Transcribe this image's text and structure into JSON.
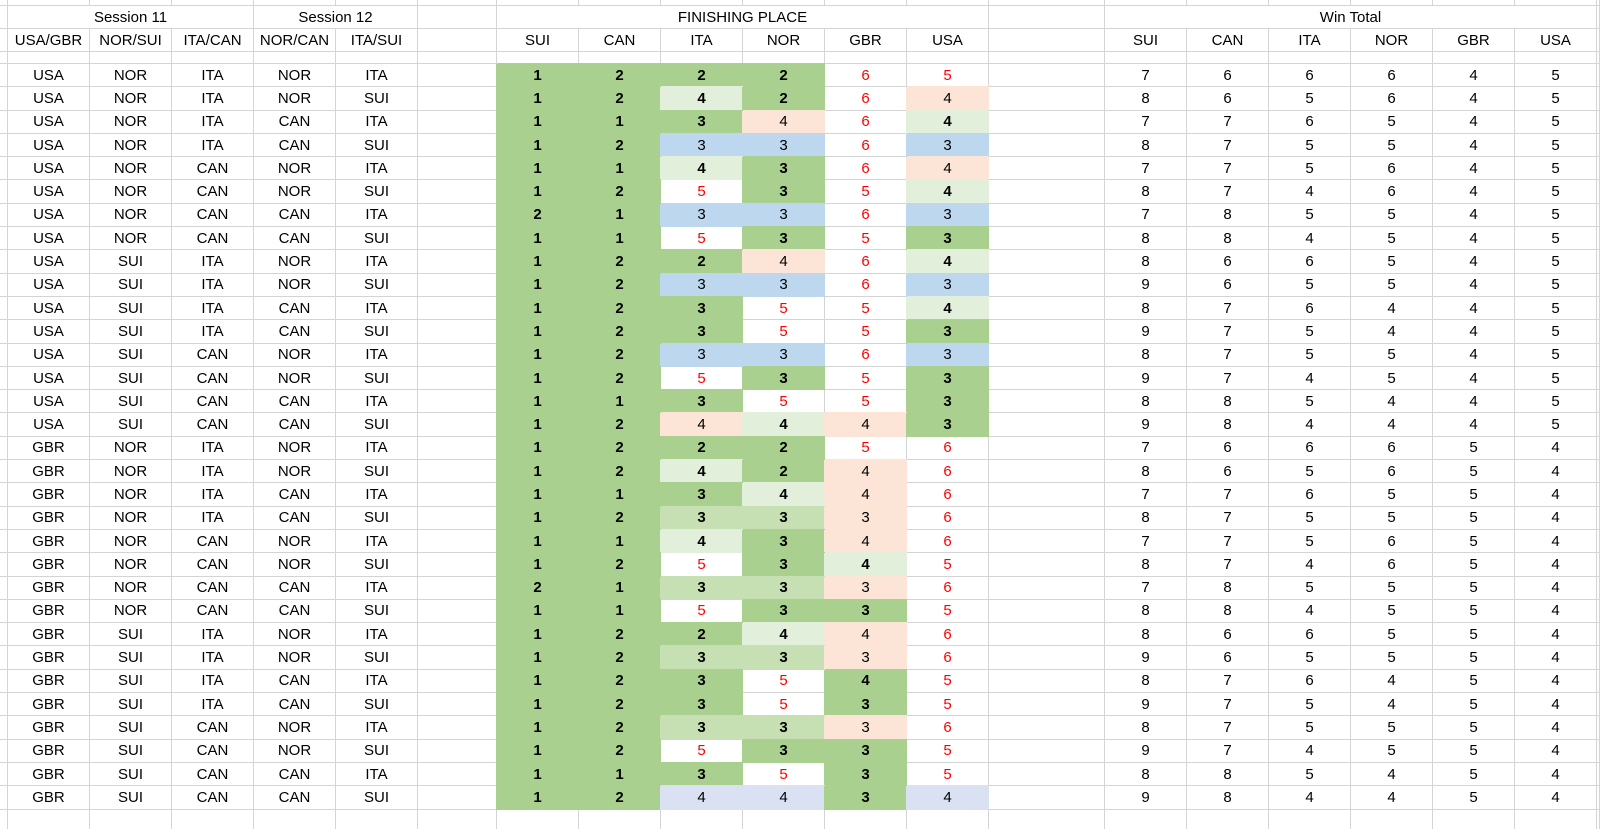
{
  "headers": {
    "session11": "Session 11",
    "session12": "Session 12",
    "finishing_place": "FINISHING PLACE",
    "win_total": "Win Total",
    "matchups": [
      "USA/GBR",
      "NOR/SUI",
      "ITA/CAN",
      "NOR/CAN",
      "ITA/SUI"
    ],
    "teams": [
      "SUI",
      "CAN",
      "ITA",
      "NOR",
      "GBR",
      "USA"
    ]
  },
  "colors": {
    "fill_win_strong_green": "#a9d08e",
    "fill_mid_green": "#c6e0b4",
    "fill_light_green": "#e2efda",
    "fill_pink": "#fce4d6",
    "fill_blue": "#bdd7ee",
    "fill_lavender": "#d9e1f2",
    "gridline": "#d4d4d4",
    "eliminated_text_red": "#ff0000"
  },
  "fill_legend": {
    "G": "strong-green",
    "M": "mid-green",
    "L": "light-green",
    "P": "pink",
    "B": "blue",
    "V": "lavender",
    "W": "white-red-text"
  },
  "rows": [
    {
      "s": [
        "USA",
        "NOR",
        "ITA",
        "NOR",
        "ITA"
      ],
      "f": [
        [
          "1",
          "G"
        ],
        [
          "2",
          "G"
        ],
        [
          "2",
          "G"
        ],
        [
          "2",
          "G"
        ],
        [
          "6",
          "W"
        ],
        [
          "5",
          "W"
        ]
      ],
      "w": [
        7,
        6,
        6,
        6,
        4,
        5
      ]
    },
    {
      "s": [
        "USA",
        "NOR",
        "ITA",
        "NOR",
        "SUI"
      ],
      "f": [
        [
          "1",
          "G"
        ],
        [
          "2",
          "G"
        ],
        [
          "4",
          "L"
        ],
        [
          "2",
          "G"
        ],
        [
          "6",
          "W"
        ],
        [
          "4",
          "P"
        ]
      ],
      "w": [
        8,
        6,
        5,
        6,
        4,
        5
      ]
    },
    {
      "s": [
        "USA",
        "NOR",
        "ITA",
        "CAN",
        "ITA"
      ],
      "f": [
        [
          "1",
          "G"
        ],
        [
          "1",
          "G"
        ],
        [
          "3",
          "G"
        ],
        [
          "4",
          "P"
        ],
        [
          "6",
          "W"
        ],
        [
          "4",
          "L"
        ]
      ],
      "w": [
        7,
        7,
        6,
        5,
        4,
        5
      ]
    },
    {
      "s": [
        "USA",
        "NOR",
        "ITA",
        "CAN",
        "SUI"
      ],
      "f": [
        [
          "1",
          "G"
        ],
        [
          "2",
          "G"
        ],
        [
          "3",
          "B"
        ],
        [
          "3",
          "B"
        ],
        [
          "6",
          "W"
        ],
        [
          "3",
          "B"
        ]
      ],
      "w": [
        8,
        7,
        5,
        5,
        4,
        5
      ]
    },
    {
      "s": [
        "USA",
        "NOR",
        "CAN",
        "NOR",
        "ITA"
      ],
      "f": [
        [
          "1",
          "G"
        ],
        [
          "1",
          "G"
        ],
        [
          "4",
          "L"
        ],
        [
          "3",
          "G"
        ],
        [
          "6",
          "W"
        ],
        [
          "4",
          "P"
        ]
      ],
      "w": [
        7,
        7,
        5,
        6,
        4,
        5
      ]
    },
    {
      "s": [
        "USA",
        "NOR",
        "CAN",
        "NOR",
        "SUI"
      ],
      "f": [
        [
          "1",
          "G"
        ],
        [
          "2",
          "G"
        ],
        [
          "5",
          "W"
        ],
        [
          "3",
          "G"
        ],
        [
          "5",
          "W"
        ],
        [
          "4",
          "L"
        ]
      ],
      "w": [
        8,
        7,
        4,
        6,
        4,
        5
      ]
    },
    {
      "s": [
        "USA",
        "NOR",
        "CAN",
        "CAN",
        "ITA"
      ],
      "f": [
        [
          "2",
          "G"
        ],
        [
          "1",
          "G"
        ],
        [
          "3",
          "B"
        ],
        [
          "3",
          "B"
        ],
        [
          "6",
          "W"
        ],
        [
          "3",
          "B"
        ]
      ],
      "w": [
        7,
        8,
        5,
        5,
        4,
        5
      ]
    },
    {
      "s": [
        "USA",
        "NOR",
        "CAN",
        "CAN",
        "SUI"
      ],
      "f": [
        [
          "1",
          "G"
        ],
        [
          "1",
          "G"
        ],
        [
          "5",
          "W"
        ],
        [
          "3",
          "G"
        ],
        [
          "5",
          "W"
        ],
        [
          "3",
          "G"
        ]
      ],
      "w": [
        8,
        8,
        4,
        5,
        4,
        5
      ]
    },
    {
      "s": [
        "USA",
        "SUI",
        "ITA",
        "NOR",
        "ITA"
      ],
      "f": [
        [
          "1",
          "G"
        ],
        [
          "2",
          "G"
        ],
        [
          "2",
          "G"
        ],
        [
          "4",
          "P"
        ],
        [
          "6",
          "W"
        ],
        [
          "4",
          "L"
        ]
      ],
      "w": [
        8,
        6,
        6,
        5,
        4,
        5
      ]
    },
    {
      "s": [
        "USA",
        "SUI",
        "ITA",
        "NOR",
        "SUI"
      ],
      "f": [
        [
          "1",
          "G"
        ],
        [
          "2",
          "G"
        ],
        [
          "3",
          "B"
        ],
        [
          "3",
          "B"
        ],
        [
          "6",
          "W"
        ],
        [
          "3",
          "B"
        ]
      ],
      "w": [
        9,
        6,
        5,
        5,
        4,
        5
      ]
    },
    {
      "s": [
        "USA",
        "SUI",
        "ITA",
        "CAN",
        "ITA"
      ],
      "f": [
        [
          "1",
          "G"
        ],
        [
          "2",
          "G"
        ],
        [
          "3",
          "G"
        ],
        [
          "5",
          "W"
        ],
        [
          "5",
          "W"
        ],
        [
          "4",
          "L"
        ]
      ],
      "w": [
        8,
        7,
        6,
        4,
        4,
        5
      ]
    },
    {
      "s": [
        "USA",
        "SUI",
        "ITA",
        "CAN",
        "SUI"
      ],
      "f": [
        [
          "1",
          "G"
        ],
        [
          "2",
          "G"
        ],
        [
          "3",
          "G"
        ],
        [
          "5",
          "W"
        ],
        [
          "5",
          "W"
        ],
        [
          "3",
          "G"
        ]
      ],
      "w": [
        9,
        7,
        5,
        4,
        4,
        5
      ]
    },
    {
      "s": [
        "USA",
        "SUI",
        "CAN",
        "NOR",
        "ITA"
      ],
      "f": [
        [
          "1",
          "G"
        ],
        [
          "2",
          "G"
        ],
        [
          "3",
          "B"
        ],
        [
          "3",
          "B"
        ],
        [
          "6",
          "W"
        ],
        [
          "3",
          "B"
        ]
      ],
      "w": [
        8,
        7,
        5,
        5,
        4,
        5
      ]
    },
    {
      "s": [
        "USA",
        "SUI",
        "CAN",
        "NOR",
        "SUI"
      ],
      "f": [
        [
          "1",
          "G"
        ],
        [
          "2",
          "G"
        ],
        [
          "5",
          "W"
        ],
        [
          "3",
          "G"
        ],
        [
          "5",
          "W"
        ],
        [
          "3",
          "G"
        ]
      ],
      "w": [
        9,
        7,
        4,
        5,
        4,
        5
      ]
    },
    {
      "s": [
        "USA",
        "SUI",
        "CAN",
        "CAN",
        "ITA"
      ],
      "f": [
        [
          "1",
          "G"
        ],
        [
          "1",
          "G"
        ],
        [
          "3",
          "G"
        ],
        [
          "5",
          "W"
        ],
        [
          "5",
          "W"
        ],
        [
          "3",
          "G"
        ]
      ],
      "w": [
        8,
        8,
        5,
        4,
        4,
        5
      ]
    },
    {
      "s": [
        "USA",
        "SUI",
        "CAN",
        "CAN",
        "SUI"
      ],
      "f": [
        [
          "1",
          "G"
        ],
        [
          "2",
          "G"
        ],
        [
          "4",
          "P"
        ],
        [
          "4",
          "L"
        ],
        [
          "4",
          "P"
        ],
        [
          "3",
          "G"
        ]
      ],
      "w": [
        9,
        8,
        4,
        4,
        4,
        5
      ]
    },
    {
      "s": [
        "GBR",
        "NOR",
        "ITA",
        "NOR",
        "ITA"
      ],
      "f": [
        [
          "1",
          "G"
        ],
        [
          "2",
          "G"
        ],
        [
          "2",
          "G"
        ],
        [
          "2",
          "G"
        ],
        [
          "5",
          "W"
        ],
        [
          "6",
          "W"
        ]
      ],
      "w": [
        7,
        6,
        6,
        6,
        5,
        4
      ]
    },
    {
      "s": [
        "GBR",
        "NOR",
        "ITA",
        "NOR",
        "SUI"
      ],
      "f": [
        [
          "1",
          "G"
        ],
        [
          "2",
          "G"
        ],
        [
          "4",
          "L"
        ],
        [
          "2",
          "G"
        ],
        [
          "4",
          "P"
        ],
        [
          "6",
          "W"
        ]
      ],
      "w": [
        8,
        6,
        5,
        6,
        5,
        4
      ]
    },
    {
      "s": [
        "GBR",
        "NOR",
        "ITA",
        "CAN",
        "ITA"
      ],
      "f": [
        [
          "1",
          "G"
        ],
        [
          "1",
          "G"
        ],
        [
          "3",
          "G"
        ],
        [
          "4",
          "L"
        ],
        [
          "4",
          "P"
        ],
        [
          "6",
          "W"
        ]
      ],
      "w": [
        7,
        7,
        6,
        5,
        5,
        4
      ]
    },
    {
      "s": [
        "GBR",
        "NOR",
        "ITA",
        "CAN",
        "SUI"
      ],
      "f": [
        [
          "1",
          "G"
        ],
        [
          "2",
          "G"
        ],
        [
          "3",
          "M"
        ],
        [
          "3",
          "M"
        ],
        [
          "3",
          "P"
        ],
        [
          "6",
          "W"
        ]
      ],
      "w": [
        8,
        7,
        5,
        5,
        5,
        4
      ]
    },
    {
      "s": [
        "GBR",
        "NOR",
        "CAN",
        "NOR",
        "ITA"
      ],
      "f": [
        [
          "1",
          "G"
        ],
        [
          "1",
          "G"
        ],
        [
          "4",
          "L"
        ],
        [
          "3",
          "G"
        ],
        [
          "4",
          "P"
        ],
        [
          "6",
          "W"
        ]
      ],
      "w": [
        7,
        7,
        5,
        6,
        5,
        4
      ]
    },
    {
      "s": [
        "GBR",
        "NOR",
        "CAN",
        "NOR",
        "SUI"
      ],
      "f": [
        [
          "1",
          "G"
        ],
        [
          "2",
          "G"
        ],
        [
          "5",
          "W"
        ],
        [
          "3",
          "G"
        ],
        [
          "4",
          "L"
        ],
        [
          "5",
          "W"
        ]
      ],
      "w": [
        8,
        7,
        4,
        6,
        5,
        4
      ]
    },
    {
      "s": [
        "GBR",
        "NOR",
        "CAN",
        "CAN",
        "ITA"
      ],
      "f": [
        [
          "2",
          "G"
        ],
        [
          "1",
          "G"
        ],
        [
          "3",
          "M"
        ],
        [
          "3",
          "M"
        ],
        [
          "3",
          "P"
        ],
        [
          "6",
          "W"
        ]
      ],
      "w": [
        7,
        8,
        5,
        5,
        5,
        4
      ]
    },
    {
      "s": [
        "GBR",
        "NOR",
        "CAN",
        "CAN",
        "SUI"
      ],
      "f": [
        [
          "1",
          "G"
        ],
        [
          "1",
          "G"
        ],
        [
          "5",
          "W"
        ],
        [
          "3",
          "G"
        ],
        [
          "3",
          "G"
        ],
        [
          "5",
          "W"
        ]
      ],
      "w": [
        8,
        8,
        4,
        5,
        5,
        4
      ]
    },
    {
      "s": [
        "GBR",
        "SUI",
        "ITA",
        "NOR",
        "ITA"
      ],
      "f": [
        [
          "1",
          "G"
        ],
        [
          "2",
          "G"
        ],
        [
          "2",
          "G"
        ],
        [
          "4",
          "L"
        ],
        [
          "4",
          "P"
        ],
        [
          "6",
          "W"
        ]
      ],
      "w": [
        8,
        6,
        6,
        5,
        5,
        4
      ]
    },
    {
      "s": [
        "GBR",
        "SUI",
        "ITA",
        "NOR",
        "SUI"
      ],
      "f": [
        [
          "1",
          "G"
        ],
        [
          "2",
          "G"
        ],
        [
          "3",
          "M"
        ],
        [
          "3",
          "M"
        ],
        [
          "3",
          "P"
        ],
        [
          "6",
          "W"
        ]
      ],
      "w": [
        9,
        6,
        5,
        5,
        5,
        4
      ]
    },
    {
      "s": [
        "GBR",
        "SUI",
        "ITA",
        "CAN",
        "ITA"
      ],
      "f": [
        [
          "1",
          "G"
        ],
        [
          "2",
          "G"
        ],
        [
          "3",
          "G"
        ],
        [
          "5",
          "W"
        ],
        [
          "4",
          "G"
        ],
        [
          "5",
          "W"
        ]
      ],
      "w": [
        8,
        7,
        6,
        4,
        5,
        4
      ]
    },
    {
      "s": [
        "GBR",
        "SUI",
        "ITA",
        "CAN",
        "SUI"
      ],
      "f": [
        [
          "1",
          "G"
        ],
        [
          "2",
          "G"
        ],
        [
          "3",
          "G"
        ],
        [
          "5",
          "W"
        ],
        [
          "3",
          "G"
        ],
        [
          "5",
          "W"
        ]
      ],
      "w": [
        9,
        7,
        5,
        4,
        5,
        4
      ]
    },
    {
      "s": [
        "GBR",
        "SUI",
        "CAN",
        "NOR",
        "ITA"
      ],
      "f": [
        [
          "1",
          "G"
        ],
        [
          "2",
          "G"
        ],
        [
          "3",
          "M"
        ],
        [
          "3",
          "M"
        ],
        [
          "3",
          "P"
        ],
        [
          "6",
          "W"
        ]
      ],
      "w": [
        8,
        7,
        5,
        5,
        5,
        4
      ]
    },
    {
      "s": [
        "GBR",
        "SUI",
        "CAN",
        "NOR",
        "SUI"
      ],
      "f": [
        [
          "1",
          "G"
        ],
        [
          "2",
          "G"
        ],
        [
          "5",
          "W"
        ],
        [
          "3",
          "G"
        ],
        [
          "3",
          "G"
        ],
        [
          "5",
          "W"
        ]
      ],
      "w": [
        9,
        7,
        4,
        5,
        5,
        4
      ]
    },
    {
      "s": [
        "GBR",
        "SUI",
        "CAN",
        "CAN",
        "ITA"
      ],
      "f": [
        [
          "1",
          "G"
        ],
        [
          "1",
          "G"
        ],
        [
          "3",
          "G"
        ],
        [
          "5",
          "W"
        ],
        [
          "3",
          "G"
        ],
        [
          "5",
          "W"
        ]
      ],
      "w": [
        8,
        8,
        5,
        4,
        5,
        4
      ]
    },
    {
      "s": [
        "GBR",
        "SUI",
        "CAN",
        "CAN",
        "SUI"
      ],
      "f": [
        [
          "1",
          "G"
        ],
        [
          "2",
          "G"
        ],
        [
          "4",
          "V"
        ],
        [
          "4",
          "V"
        ],
        [
          "3",
          "G"
        ],
        [
          "4",
          "V"
        ]
      ],
      "w": [
        9,
        8,
        4,
        4,
        5,
        4
      ]
    }
  ]
}
